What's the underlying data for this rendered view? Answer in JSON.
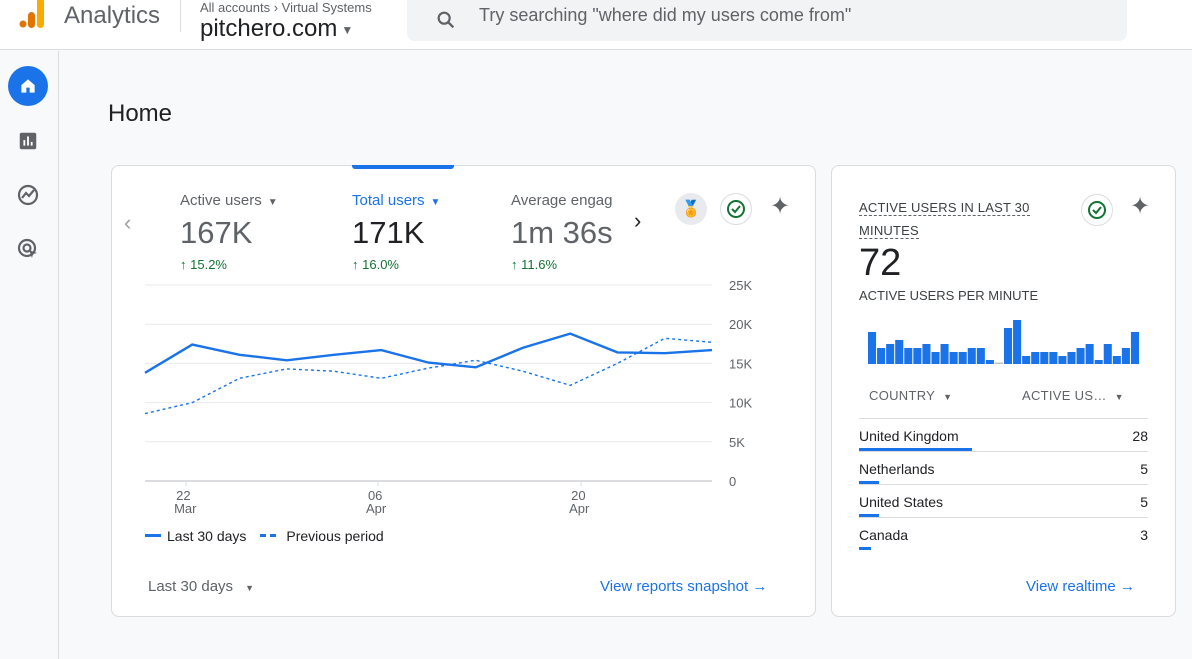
{
  "header": {
    "app_name": "Analytics",
    "breadcrumb": "All accounts › Virtual Systems",
    "property": "pitchero.com",
    "search_placeholder": "Try searching \"where did my users come from\""
  },
  "nav": {
    "items": [
      {
        "icon": "home-icon",
        "active": true
      },
      {
        "icon": "reports-icon"
      },
      {
        "icon": "explore-icon"
      },
      {
        "icon": "advertising-icon"
      }
    ]
  },
  "page_title": "Home",
  "overview": {
    "metrics": [
      {
        "label": "Active users",
        "value": "167K",
        "change": "15.2%"
      },
      {
        "label": "Total users",
        "value": "171K",
        "change": "16.0%",
        "selected": true
      },
      {
        "label": "Average engag",
        "value": "1m 36s",
        "change": "11.6%"
      }
    ],
    "date_range": "Last 30 days",
    "link": "View reports snapshot",
    "legend": {
      "current": "Last 30 days",
      "previous": "Previous period"
    }
  },
  "chart_data": {
    "type": "line",
    "ylim": [
      0,
      25000
    ],
    "y_ticks": [
      "0",
      "5K",
      "10K",
      "15K",
      "20K",
      "25K"
    ],
    "x_ticks": [
      {
        "day": "22",
        "month": "Mar"
      },
      {
        "day": "06",
        "month": "Apr"
      },
      {
        "day": "20",
        "month": "Apr"
      }
    ],
    "grid": true,
    "legend": "bottom-left",
    "series": [
      {
        "name": "Last 30 days",
        "style": "solid",
        "values": [
          13800,
          17400,
          16100,
          15400,
          16100,
          16700,
          15100,
          14500,
          17000,
          18800,
          16400,
          16300,
          16700
        ]
      },
      {
        "name": "Previous period",
        "style": "dashed",
        "values": [
          8600,
          10000,
          13100,
          14300,
          14000,
          13100,
          14400,
          15400,
          14000,
          12200,
          15000,
          18200,
          17700
        ]
      }
    ],
    "color": "#1a73e8"
  },
  "realtime": {
    "title": "ACTIVE USERS IN LAST 30 MINUTES",
    "count": "72",
    "per_minute_label": "ACTIVE USERS PER MINUTE",
    "per_minute": [
      8,
      4,
      5,
      6,
      4,
      4,
      5,
      3,
      5,
      3,
      3,
      4,
      4,
      1,
      0,
      9,
      11,
      2,
      3,
      3,
      3,
      2,
      3,
      4,
      5,
      1,
      5,
      2,
      4,
      8
    ],
    "col_country": "COUNTRY",
    "col_users": "ACTIVE US…",
    "rows": [
      {
        "country": "United Kingdom",
        "users": "28"
      },
      {
        "country": "Netherlands",
        "users": "5"
      },
      {
        "country": "United States",
        "users": "5"
      },
      {
        "country": "Canada",
        "users": "3"
      }
    ],
    "link": "View realtime"
  }
}
